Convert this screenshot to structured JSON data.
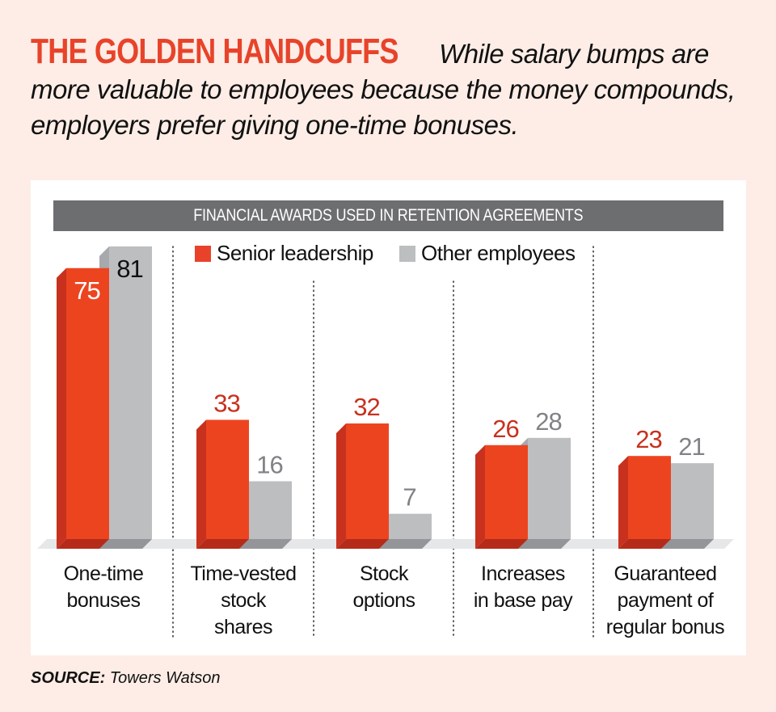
{
  "headline": {
    "title": "THE GOLDEN HANDCUFFS",
    "dek": "While salary bumps are more valuable to employees because the money compounds, employers prefer giving one-time bonuses."
  },
  "banner": "FINANCIAL AWARDS USED IN RETENTION AGREEMENTS",
  "source": {
    "label": "SOURCE:",
    "value": "Towers Watson"
  },
  "colors": {
    "background": "#fdede6",
    "accent_red": "#e8432a",
    "red_side": "#c7311e",
    "gray_bar": "#bcbec0",
    "gray_side": "#a7a9ac",
    "banner_gray": "#6d6e70",
    "floor": "#e6e7e8"
  },
  "chart_data": {
    "type": "bar",
    "title": "FINANCIAL AWARDS USED IN RETENTION AGREEMENTS",
    "xlabel": "",
    "ylabel": "",
    "ylim": [
      0,
      85
    ],
    "grid": false,
    "legend_position": "top",
    "categories": [
      "One-time bonuses",
      "Time-vested stock shares",
      "Stock options",
      "Increases in base pay",
      "Guaranteed payment of regular bonus"
    ],
    "category_label_lines": [
      [
        "One-time",
        "bonuses"
      ],
      [
        "Time-vested",
        "stock",
        "shares"
      ],
      [
        "Stock",
        "options"
      ],
      [
        "Increases",
        "in base pay"
      ],
      [
        "Guaranteed",
        "payment of",
        "regular bonus"
      ]
    ],
    "series": [
      {
        "name": "Senior leadership",
        "color": "#e8432a",
        "values": [
          75,
          33,
          32,
          26,
          23
        ]
      },
      {
        "name": "Other employees",
        "color": "#bcbec0",
        "values": [
          81,
          16,
          7,
          28,
          21
        ]
      }
    ]
  }
}
